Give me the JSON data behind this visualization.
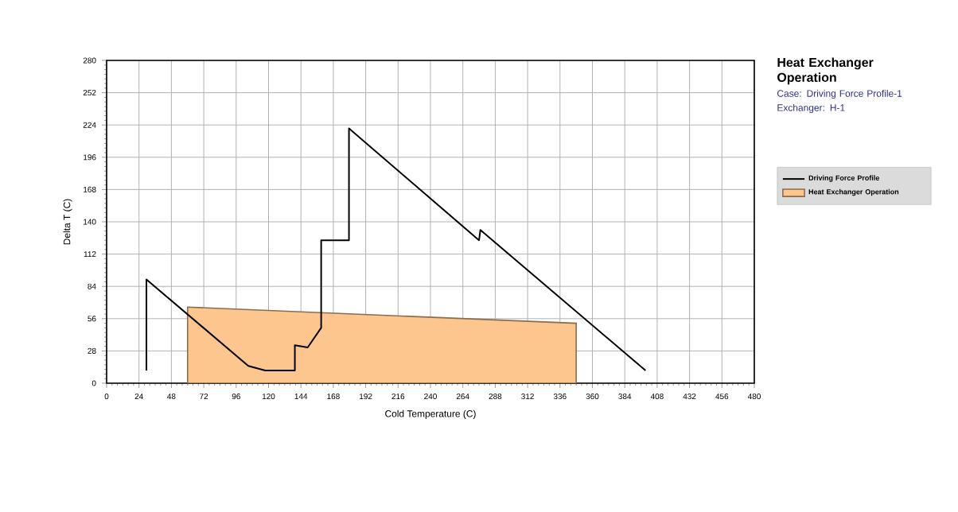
{
  "chart_data": {
    "type": "line",
    "title": "Heat Exchanger Operation",
    "subtitle": "Case: Driving Force Profile-1",
    "annotations": [
      "Exchanger: H-1"
    ],
    "xlabel": "Cold Temperature (C)",
    "ylabel": "Delta T (C)",
    "xlim": [
      0,
      480
    ],
    "ylim": [
      0,
      280
    ],
    "xticks": [
      0,
      24,
      48,
      72,
      96,
      120,
      144,
      168,
      192,
      216,
      240,
      264,
      288,
      312,
      336,
      360,
      384,
      408,
      432,
      456,
      480
    ],
    "yticks": [
      0,
      28,
      56,
      84,
      112,
      140,
      168,
      196,
      224,
      252,
      280
    ],
    "grid": true,
    "legend": "right",
    "series": [
      {
        "name": "Driving Force Profile",
        "color": "#000000",
        "x": [
          29.5,
          29.5,
          105,
          117.5,
          139.5,
          139.5,
          149,
          159,
          159,
          179.6,
          179.6,
          276,
          277,
          399.4
        ],
        "values": [
          11,
          90,
          15,
          11,
          11,
          33,
          31,
          48,
          124,
          124,
          221,
          124,
          133,
          11
        ]
      },
      {
        "name": "Heat Exchanger Operation",
        "type": "area",
        "color": "#fcc68e",
        "x": [
          60,
          348
        ],
        "values": [
          66,
          52
        ]
      }
    ]
  }
}
